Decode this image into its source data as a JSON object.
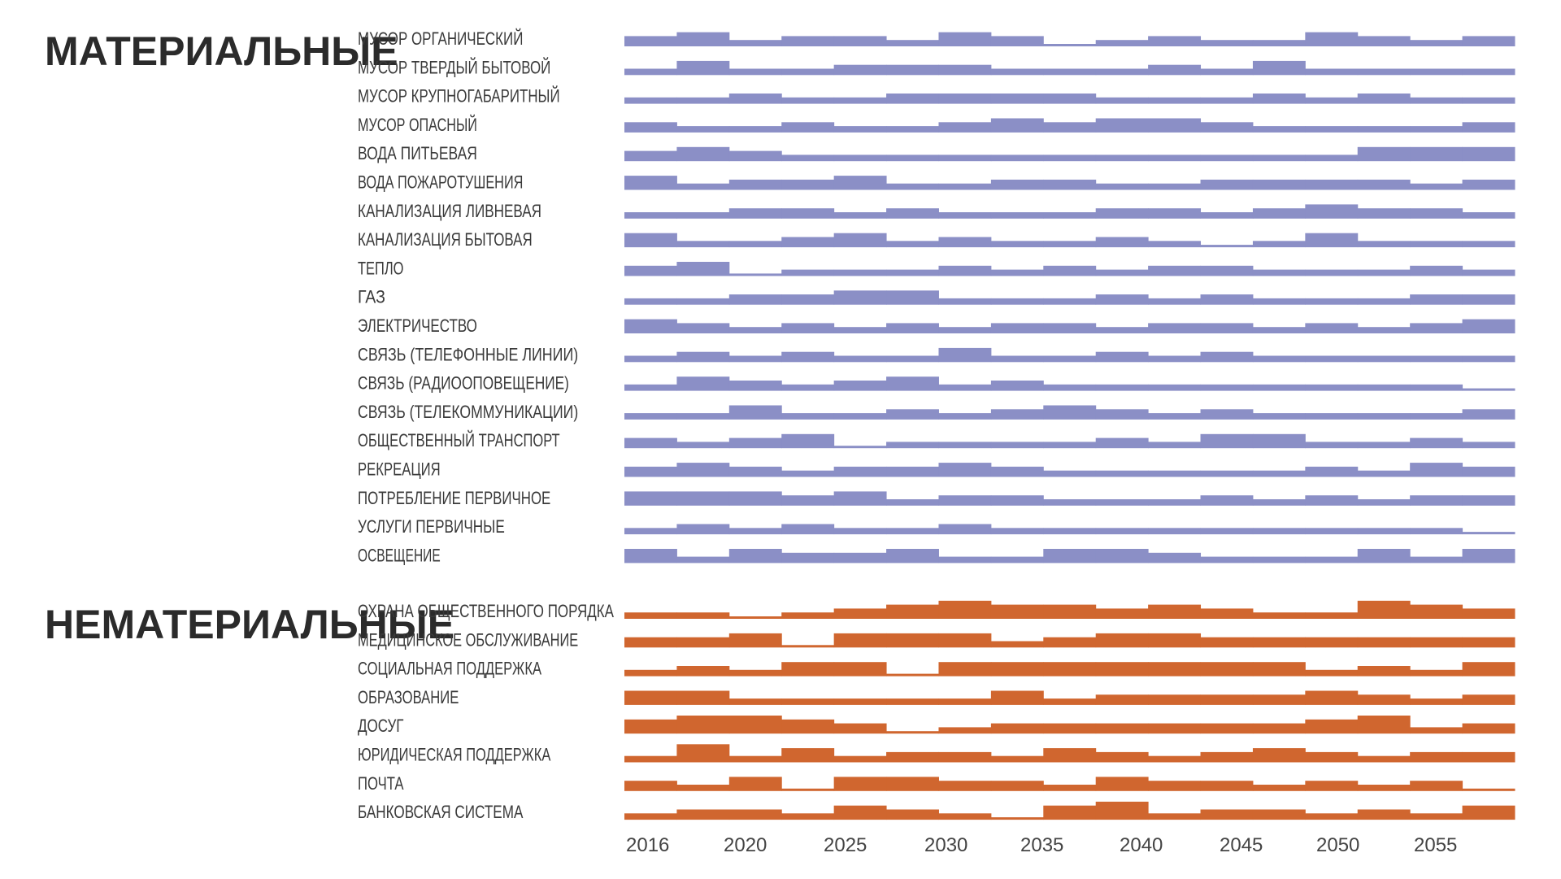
{
  "chart_data": {
    "type": "area",
    "x": [
      "2016",
      "2020",
      "2025",
      "2030",
      "2035",
      "2040",
      "2045",
      "2050",
      "2055"
    ],
    "sections": [
      {
        "title": "МАТЕРИАЛЬНЫЕ",
        "color": "#8b8fc6",
        "rows": [
          {
            "label": "МУСОР ОРГАНИЧЕСКИЙ",
            "values": [
              2,
              3,
              1,
              2,
              2,
              1,
              3,
              2,
              0,
              1,
              2,
              1,
              1,
              3,
              2,
              1,
              2
            ]
          },
          {
            "label": "МУСОР ТВЕРДЫЙ БЫТОВОЙ",
            "values": [
              1,
              3,
              1,
              1,
              2,
              2,
              2,
              1,
              1,
              1,
              2,
              1,
              3,
              1,
              1,
              1,
              1
            ]
          },
          {
            "label": "МУСОР КРУПНОГАБАРИТНЫЙ",
            "values": [
              1,
              1,
              2,
              1,
              1,
              2,
              2,
              2,
              2,
              1,
              1,
              1,
              2,
              1,
              2,
              1,
              1
            ]
          },
          {
            "label": "МУСОР ОПАСНЫЙ",
            "values": [
              2,
              1,
              1,
              2,
              1,
              1,
              2,
              3,
              2,
              3,
              3,
              2,
              1,
              1,
              1,
              1,
              2
            ]
          },
          {
            "label": "ВОДА ПИТЬЕВАЯ",
            "values": [
              2,
              3,
              2,
              1,
              1,
              1,
              1,
              1,
              1,
              1,
              1,
              1,
              1,
              1,
              3,
              3,
              3
            ]
          },
          {
            "label": "ВОДА ПОЖАРОТУШЕНИЯ",
            "values": [
              3,
              1,
              2,
              2,
              3,
              1,
              1,
              2,
              2,
              1,
              1,
              2,
              2,
              2,
              2,
              1,
              2
            ]
          },
          {
            "label": "КАНАЛИЗАЦИЯ ЛИВНЕВАЯ",
            "values": [
              1,
              1,
              2,
              2,
              1,
              2,
              1,
              1,
              1,
              2,
              2,
              1,
              2,
              3,
              2,
              2,
              1
            ]
          },
          {
            "label": "КАНАЛИЗАЦИЯ БЫТОВАЯ",
            "values": [
              3,
              1,
              1,
              2,
              3,
              1,
              2,
              1,
              1,
              2,
              1,
              0,
              1,
              3,
              1,
              1,
              1
            ]
          },
          {
            "label": "ТЕПЛО",
            "values": [
              2,
              3,
              0,
              1,
              1,
              1,
              2,
              1,
              2,
              1,
              2,
              2,
              1,
              1,
              1,
              2,
              1
            ]
          },
          {
            "label": "ГАЗ",
            "values": [
              1,
              1,
              2,
              2,
              3,
              3,
              1,
              1,
              1,
              2,
              1,
              2,
              1,
              1,
              1,
              2,
              2
            ]
          },
          {
            "label": "ЭЛЕКТРИЧЕСТВО",
            "values": [
              3,
              2,
              1,
              2,
              1,
              2,
              1,
              2,
              2,
              1,
              2,
              2,
              1,
              2,
              1,
              2,
              3
            ]
          },
          {
            "label": "СВЯЗЬ (ТЕЛЕФОННЫЕ ЛИНИИ)",
            "values": [
              1,
              2,
              1,
              2,
              1,
              1,
              3,
              1,
              1,
              2,
              1,
              2,
              1,
              1,
              1,
              1,
              1
            ]
          },
          {
            "label": "СВЯЗЬ (РАДИООПОВЕЩЕНИЕ)",
            "values": [
              1,
              3,
              2,
              1,
              2,
              3,
              1,
              2,
              1,
              1,
              1,
              1,
              1,
              1,
              1,
              1,
              0
            ]
          },
          {
            "label": "СВЯЗЬ (ТЕЛЕКОММУНИКАЦИИ)",
            "values": [
              1,
              1,
              3,
              1,
              1,
              2,
              1,
              2,
              3,
              2,
              1,
              2,
              1,
              1,
              1,
              1,
              2
            ]
          },
          {
            "label": "ОБЩЕСТВЕННЫЙ ТРАНСПОРТ",
            "values": [
              2,
              1,
              2,
              3,
              0,
              1,
              1,
              1,
              1,
              2,
              1,
              3,
              3,
              1,
              1,
              2,
              1
            ]
          },
          {
            "label": "РЕКРЕАЦИЯ",
            "values": [
              2,
              3,
              2,
              1,
              2,
              2,
              3,
              2,
              1,
              1,
              1,
              1,
              1,
              2,
              1,
              3,
              2
            ]
          },
          {
            "label": "ПОТРЕБЛЕНИЕ ПЕРВИЧНОЕ",
            "values": [
              3,
              3,
              3,
              2,
              3,
              1,
              2,
              2,
              1,
              1,
              1,
              2,
              1,
              2,
              1,
              2,
              2
            ]
          },
          {
            "label": "УСЛУГИ ПЕРВИЧНЫЕ",
            "values": [
              1,
              2,
              1,
              2,
              1,
              1,
              2,
              1,
              1,
              1,
              1,
              1,
              1,
              1,
              1,
              1,
              0
            ]
          },
          {
            "label": "ОСВЕЩЕНИЕ",
            "values": [
              3,
              1,
              3,
              2,
              2,
              3,
              1,
              1,
              3,
              3,
              2,
              1,
              1,
              1,
              3,
              1,
              3
            ]
          }
        ]
      },
      {
        "title": "НЕМАТЕРИАЛЬНЫЕ",
        "color": "#d0662f",
        "rows": [
          {
            "label": "ОХРАНА ОБЩЕСТВЕННОГО ПОРЯДКА",
            "values": [
              1,
              1,
              0,
              1,
              2,
              3,
              4,
              3,
              3,
              2,
              3,
              2,
              1,
              1,
              4,
              3,
              2
            ]
          },
          {
            "label": "МЕДИЦИНСКОЕ ОБСЛУЖИВАНИЕ",
            "values": [
              2,
              2,
              3,
              0,
              3,
              3,
              3,
              1,
              2,
              3,
              3,
              2,
              2,
              2,
              2,
              2,
              2
            ]
          },
          {
            "label": "СОЦИАЛЬНАЯ ПОДДЕРЖКА",
            "values": [
              1,
              2,
              1,
              3,
              3,
              0,
              3,
              3,
              3,
              3,
              3,
              3,
              3,
              1,
              2,
              1,
              3
            ]
          },
          {
            "label": "ОБРАЗОВАНИЕ",
            "values": [
              3,
              3,
              1,
              1,
              1,
              1,
              1,
              3,
              1,
              2,
              2,
              2,
              2,
              3,
              2,
              1,
              2
            ]
          },
          {
            "label": "ДОСУГ",
            "values": [
              3,
              4,
              4,
              3,
              2,
              0,
              1,
              2,
              2,
              2,
              2,
              2,
              2,
              3,
              4,
              1,
              2
            ]
          },
          {
            "label": "ЮРИДИЧЕСКАЯ ПОДДЕРЖКА",
            "values": [
              1,
              4,
              1,
              3,
              1,
              2,
              2,
              1,
              3,
              2,
              1,
              2,
              3,
              2,
              1,
              2,
              2
            ]
          },
          {
            "label": "ПОЧТА",
            "values": [
              2,
              1,
              3,
              0,
              3,
              3,
              2,
              2,
              1,
              3,
              2,
              2,
              1,
              2,
              1,
              2,
              0
            ]
          },
          {
            "label": "БАНКОВСКАЯ СИСТЕМА",
            "values": [
              1,
              2,
              2,
              1,
              3,
              2,
              1,
              0,
              3,
              4,
              1,
              2,
              2,
              1,
              2,
              1,
              3
            ]
          }
        ]
      }
    ]
  }
}
